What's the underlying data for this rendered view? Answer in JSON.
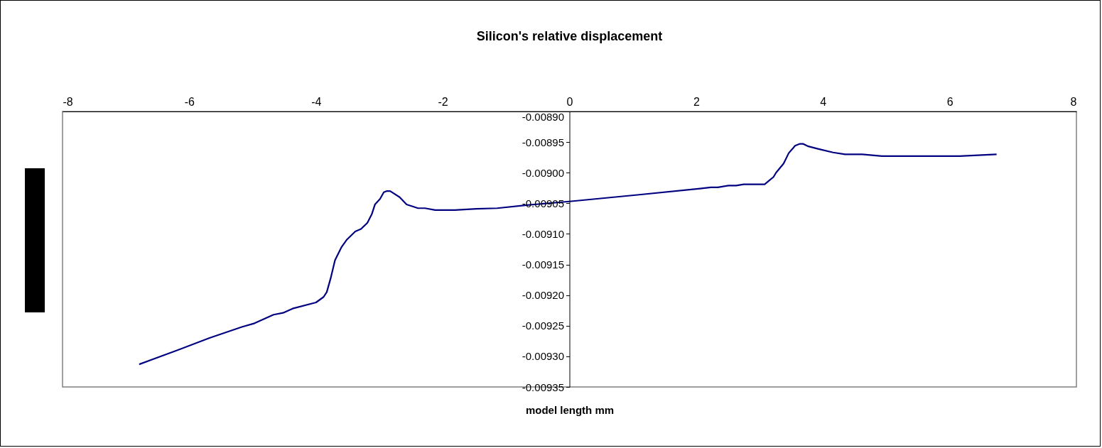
{
  "chart_data": {
    "type": "line",
    "title": "Silicon's relative displacement",
    "xlabel": "model length mm",
    "x": [
      -6.79,
      -6.24,
      -5.68,
      -5.17,
      -4.97,
      -4.67,
      -4.52,
      -4.37,
      -4.0,
      -3.88,
      -3.83,
      -3.77,
      -3.7,
      -3.6,
      -3.51,
      -3.38,
      -3.29,
      -3.19,
      -3.12,
      -3.07,
      -2.99,
      -2.93,
      -2.88,
      -2.83,
      -2.68,
      -2.57,
      -2.39,
      -2.28,
      -2.12,
      -1.81,
      -1.47,
      -1.14,
      -0.67,
      0.0,
      1.1,
      2.06,
      2.23,
      2.34,
      2.51,
      2.63,
      2.75,
      3.08,
      3.15,
      3.22,
      3.26,
      3.38,
      3.46,
      3.52,
      3.56,
      3.63,
      3.69,
      3.77,
      3.92,
      4.16,
      4.35,
      4.62,
      4.93,
      6.16,
      6.74
    ],
    "series": [
      {
        "color": "#000080",
        "values": [
          -0.009313,
          -0.009292,
          -0.00927,
          -0.009252,
          -0.009246,
          -0.009232,
          -0.009229,
          -0.009222,
          -0.009212,
          -0.009203,
          -0.009195,
          -0.009173,
          -0.009143,
          -0.009122,
          -0.009109,
          -0.009096,
          -0.009092,
          -0.009082,
          -0.009068,
          -0.009052,
          -0.009043,
          -0.009032,
          -0.00903,
          -0.00903,
          -0.00904,
          -0.009052,
          -0.009058,
          -0.009058,
          -0.009061,
          -0.009061,
          -0.009059,
          -0.009058,
          -0.009053,
          -0.009047,
          -0.009036,
          -0.009026,
          -0.009024,
          -0.009024,
          -0.009021,
          -0.009021,
          -0.009019,
          -0.009019,
          -0.009013,
          -0.009007,
          -0.009,
          -0.008985,
          -0.008968,
          -0.008961,
          -0.008956,
          -0.008953,
          -0.008953,
          -0.008957,
          -0.008961,
          -0.008967,
          -0.00897,
          -0.00897,
          -0.008973,
          -0.008973,
          -0.00897
        ]
      }
    ],
    "xlim": [
      -8,
      8
    ],
    "xticks": [
      -8,
      -6,
      -4,
      -2,
      0,
      2,
      4,
      6,
      8
    ],
    "ylim": [
      -0.00935,
      -0.0089
    ],
    "yticks": [
      {
        "value": -0.0089,
        "label": "-0.00890"
      },
      {
        "value": -0.00895,
        "label": "-0.00895"
      },
      {
        "value": -0.009,
        "label": "-0.00900"
      },
      {
        "value": -0.00905,
        "label": "-0.00905"
      },
      {
        "value": -0.0091,
        "label": "-0.00910"
      },
      {
        "value": -0.00915,
        "label": "-0.00915"
      },
      {
        "value": -0.0092,
        "label": "-0.00920"
      },
      {
        "value": -0.00925,
        "label": "-0.00925"
      },
      {
        "value": -0.0093,
        "label": "-0.00930"
      },
      {
        "value": -0.00935,
        "label": "-0.00935"
      }
    ]
  }
}
